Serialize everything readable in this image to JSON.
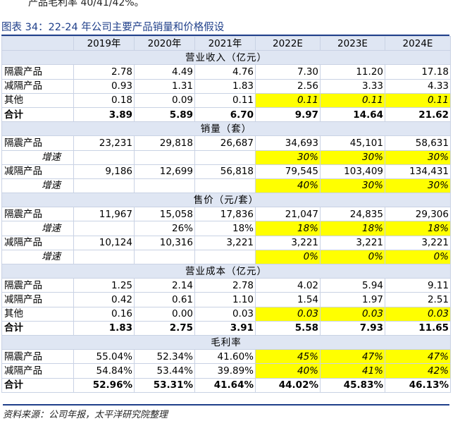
{
  "intro_text": "产品毛利率 40/41/42%。",
  "caption": "图表 34：22-24 年公司主要产品销量和价格假设",
  "source": "资料来源：公司年报，太平洋研究院整理",
  "columns": [
    "",
    "2019年",
    "2020年",
    "2021年",
    "2022E",
    "2023E",
    "2024E"
  ],
  "highlight_color": "#ffff00",
  "sections": [
    {
      "title": "营业收入（亿元）",
      "rows": [
        {
          "label": "隔震产品",
          "values": [
            "2.78",
            "4.49",
            "4.76",
            "7.30",
            "11.20",
            "17.18"
          ]
        },
        {
          "label": "减隔产品",
          "values": [
            "0.93",
            "1.31",
            "1.83",
            "2.56",
            "3.33",
            "4.33"
          ]
        },
        {
          "label": "其他",
          "values": [
            "0.18",
            "0.09",
            "0.11",
            "0.11",
            "0.11",
            "0.11"
          ],
          "highlight": [
            3,
            4,
            5
          ]
        },
        {
          "label": "合计",
          "values": [
            "3.89",
            "5.89",
            "6.70",
            "9.97",
            "14.64",
            "21.62"
          ],
          "total": true
        }
      ]
    },
    {
      "title": "销量（套）",
      "rows": [
        {
          "label": "隔震产品",
          "values": [
            "23,231",
            "29,818",
            "26,687",
            "34,693",
            "45,101",
            "58,631"
          ]
        },
        {
          "label": "增速",
          "values": [
            "",
            "",
            "",
            "30%",
            "30%",
            "30%"
          ],
          "indent": true,
          "highlight": [
            3,
            4,
            5
          ]
        },
        {
          "label": "减隔产品",
          "values": [
            "9,186",
            "12,699",
            "56,818",
            "79,545",
            "103,409",
            "134,431"
          ]
        },
        {
          "label": "增速",
          "values": [
            "",
            "",
            "",
            "40%",
            "30%",
            "30%"
          ],
          "indent": true,
          "highlight": [
            3,
            4,
            5
          ]
        }
      ]
    },
    {
      "title": "售价（元/套）",
      "rows": [
        {
          "label": "隔震产品",
          "values": [
            "11,967",
            "15,058",
            "17,836",
            "21,047",
            "24,835",
            "29,306"
          ]
        },
        {
          "label": "增速",
          "values": [
            "",
            "26%",
            "18%",
            "18%",
            "18%",
            "18%"
          ],
          "indent": true,
          "highlight": [
            3,
            4,
            5
          ]
        },
        {
          "label": "减隔产品",
          "values": [
            "10,124",
            "10,316",
            "3,221",
            "3,221",
            "3,221",
            "3,221"
          ]
        },
        {
          "label": "增速",
          "values": [
            "",
            "",
            "",
            "0%",
            "0%",
            "0%"
          ],
          "indent": true,
          "highlight": [
            3,
            4,
            5
          ]
        }
      ]
    },
    {
      "title": "营业成本（亿元）",
      "rows": [
        {
          "label": "隔震产品",
          "values": [
            "1.25",
            "2.14",
            "2.78",
            "4.02",
            "5.94",
            "9.11"
          ]
        },
        {
          "label": "减隔产品",
          "values": [
            "0.42",
            "0.61",
            "1.10",
            "1.54",
            "1.97",
            "2.51"
          ]
        },
        {
          "label": "其他",
          "values": [
            "0.16",
            "0.00",
            "0.03",
            "0.03",
            "0.03",
            "0.03"
          ],
          "highlight": [
            3,
            4,
            5
          ]
        },
        {
          "label": "合计",
          "values": [
            "1.83",
            "2.75",
            "3.91",
            "5.58",
            "7.93",
            "11.65"
          ],
          "total": true
        }
      ]
    },
    {
      "title": "毛利率",
      "rows": [
        {
          "label": "隔震产品",
          "values": [
            "55.04%",
            "52.34%",
            "41.60%",
            "45%",
            "47%",
            "47%"
          ],
          "highlight": [
            3,
            4,
            5
          ]
        },
        {
          "label": "减隔产品",
          "values": [
            "54.84%",
            "53.44%",
            "39.89%",
            "40%",
            "41%",
            "42%"
          ],
          "highlight": [
            3,
            4,
            5
          ]
        },
        {
          "label": "合计",
          "values": [
            "52.96%",
            "53.31%",
            "41.64%",
            "44.02%",
            "45.83%",
            "46.13%"
          ],
          "total": true
        }
      ]
    }
  ]
}
